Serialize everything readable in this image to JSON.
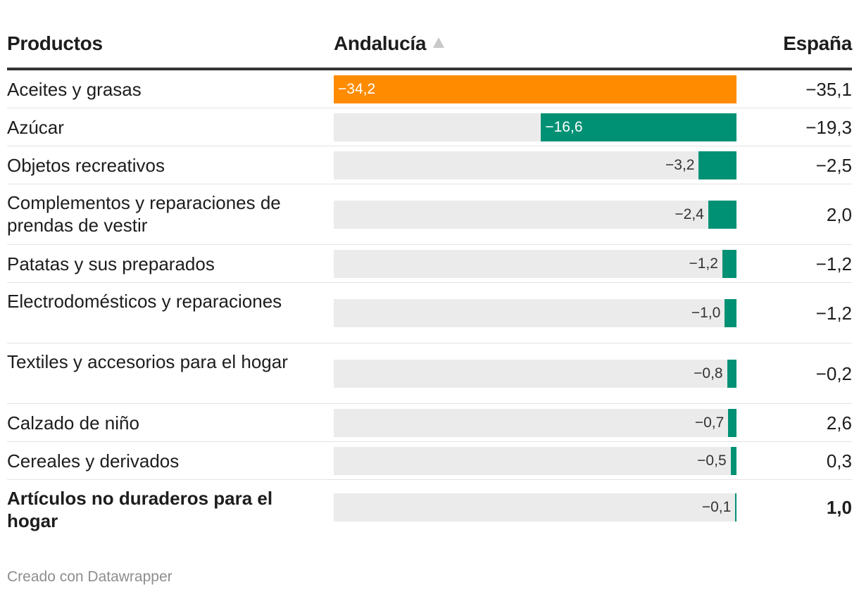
{
  "header": {
    "products_label": "Productos",
    "andalucia_label": "Andalucía",
    "espana_label": "España"
  },
  "footer": {
    "credit": "Creado con Datawrapper"
  },
  "colors": {
    "bar_default": "#009175",
    "bar_highlight": "#ff8c00",
    "track": "#ebebeb"
  },
  "chart_data": {
    "type": "bar",
    "orientation": "horizontal",
    "columns": [
      "Productos",
      "Andalucía",
      "España"
    ],
    "sort": "Andalucía ascending",
    "xlim": [
      -34.2,
      0
    ],
    "rows": [
      {
        "name": "Aceites y grasas",
        "andalucia": -34.2,
        "andalucia_label": "−34,2",
        "espana": "−35,1",
        "highlight": true,
        "bold": false
      },
      {
        "name": "Azúcar",
        "andalucia": -16.6,
        "andalucia_label": "−16,6",
        "espana": "−19,3",
        "highlight": false,
        "bold": false
      },
      {
        "name": "Objetos recreativos",
        "andalucia": -3.2,
        "andalucia_label": "−3,2",
        "espana": "−2,5",
        "highlight": false,
        "bold": false
      },
      {
        "name": "Complementos y reparaciones de prendas de vestir",
        "andalucia": -2.4,
        "andalucia_label": "−2,4",
        "espana": "2,0",
        "highlight": false,
        "bold": false
      },
      {
        "name": "Patatas y sus preparados",
        "andalucia": -1.2,
        "andalucia_label": "−1,2",
        "espana": "−1,2",
        "highlight": false,
        "bold": false
      },
      {
        "name": "Electrodomésticos y reparaciones",
        "andalucia": -1.0,
        "andalucia_label": "−1,0",
        "espana": "−1,2",
        "highlight": false,
        "bold": false
      },
      {
        "name": "Textiles y accesorios para el hogar",
        "andalucia": -0.8,
        "andalucia_label": "−0,8",
        "espana": "−0,2",
        "highlight": false,
        "bold": false
      },
      {
        "name": "Calzado de niño",
        "andalucia": -0.7,
        "andalucia_label": "−0,7",
        "espana": "2,6",
        "highlight": false,
        "bold": false
      },
      {
        "name": "Cereales y derivados",
        "andalucia": -0.5,
        "andalucia_label": "−0,5",
        "espana": "0,3",
        "highlight": false,
        "bold": false
      },
      {
        "name": "Artículos no duraderos para el hogar",
        "andalucia": -0.1,
        "andalucia_label": "−0,1",
        "espana": "1,0",
        "highlight": false,
        "bold": true
      }
    ]
  }
}
